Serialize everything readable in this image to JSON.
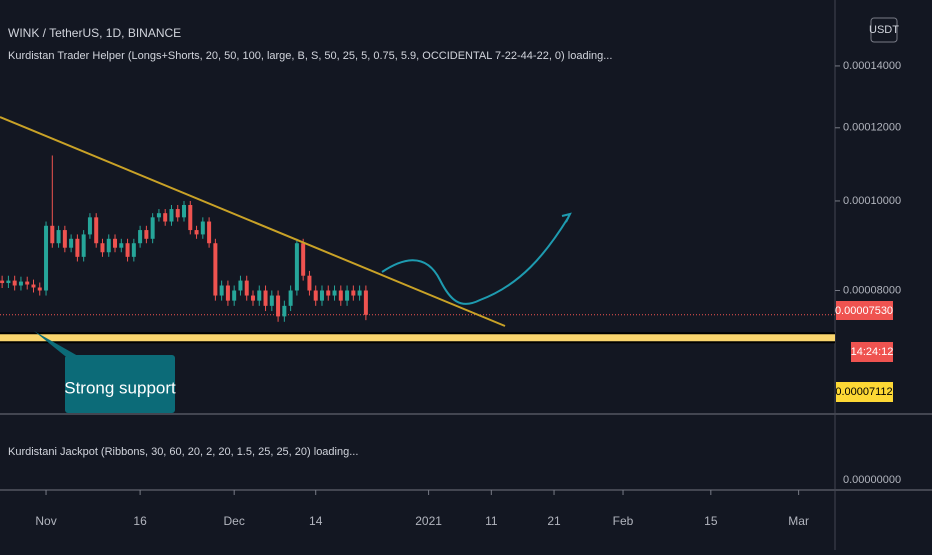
{
  "header": {
    "symbol": "WINK / TetherUS, 1D, BINANCE",
    "indicator": "Kurdistan Trader Helper (Longs+Shorts, 20, 50, 100, large, B, S, 50, 25, 5, 0.75, 5.9, OCCIDENTAL 7-22-44-22, 0) loading...",
    "currency_button": "USDT"
  },
  "annotation": "Strong support",
  "lower_pane": {
    "indicator": "Kurdistani Jackpot (Ribbons, 30, 60, 20, 2, 20, 1.5, 25, 25, 20) loading...",
    "axis_label": "0.00000000"
  },
  "chart_data": {
    "type": "candlestick",
    "log_scale": true,
    "grid": false,
    "up_color": "#26a69a",
    "down_color": "#ef5350",
    "x": [
      -7,
      -6,
      -5,
      -4,
      -3,
      -2,
      -1,
      0,
      1,
      2,
      3,
      4,
      5,
      6,
      7,
      8,
      9,
      10,
      11,
      12,
      13,
      14,
      15,
      16,
      17,
      18,
      19,
      20,
      21,
      22,
      23,
      24,
      25,
      26,
      27,
      28,
      29,
      30,
      31,
      32,
      33,
      34,
      35,
      36,
      37,
      38,
      39,
      40,
      41,
      42,
      43,
      44,
      45,
      46,
      47,
      48,
      49,
      50,
      51
    ],
    "open": [
      8.2e-05,
      8.15e-05,
      8.2e-05,
      8.1e-05,
      8.18e-05,
      8.12e-05,
      8.06e-05,
      8e-05,
      9.4e-05,
      9e-05,
      9.3e-05,
      8.9e-05,
      9.1e-05,
      8.7e-05,
      9.2e-05,
      9.6e-05,
      9e-05,
      8.8e-05,
      9.1e-05,
      8.9e-05,
      9e-05,
      8.7e-05,
      9e-05,
      9.3e-05,
      9.1e-05,
      9.6e-05,
      9.7e-05,
      9.5e-05,
      9.8e-05,
      9.6e-05,
      9.9e-05,
      9.3e-05,
      9.2e-05,
      9.5e-05,
      9e-05,
      7.9e-05,
      8.1e-05,
      7.8e-05,
      8e-05,
      8.2e-05,
      7.9e-05,
      7.8e-05,
      8e-05,
      7.7e-05,
      7.9e-05,
      7.5e-05,
      7.7e-05,
      8e-05,
      9e-05,
      8.3e-05,
      8e-05,
      7.8e-05,
      8e-05,
      7.9e-05,
      8e-05,
      7.8e-05,
      8e-05,
      7.9e-05,
      8e-05
    ],
    "high": [
      8.3e-05,
      8.3e-05,
      8.3e-05,
      8.28e-05,
      8.28e-05,
      8.22e-05,
      8.16e-05,
      9.5e-05,
      0.000112,
      9.4e-05,
      9.4e-05,
      9.2e-05,
      9.2e-05,
      9.3e-05,
      9.7e-05,
      9.7e-05,
      9.1e-05,
      9.2e-05,
      9.2e-05,
      9.1e-05,
      9.1e-05,
      9.1e-05,
      9.4e-05,
      9.4e-05,
      9.7e-05,
      9.8e-05,
      9.8e-05,
      9.9e-05,
      9.9e-05,
      0.0001,
      0.0001,
      9.4e-05,
      9.6e-05,
      9.6e-05,
      9.1e-05,
      8.2e-05,
      8.2e-05,
      8.1e-05,
      8.3e-05,
      8.3e-05,
      8e-05,
      8.1e-05,
      8.1e-05,
      8e-05,
      8e-05,
      7.8e-05,
      8.1e-05,
      9.1e-05,
      9.1e-05,
      8.4e-05,
      8.1e-05,
      8.1e-05,
      8.1e-05,
      8.1e-05,
      8.1e-05,
      8.1e-05,
      8.1e-05,
      8.1e-05,
      8.1e-05
    ],
    "low": [
      8.05e-05,
      8.05e-05,
      8e-05,
      8e-05,
      8.02e-05,
      7.96e-05,
      7.9e-05,
      7.9e-05,
      8.9e-05,
      8.9e-05,
      8.8e-05,
      8.8e-05,
      8.6e-05,
      8.6e-05,
      9.1e-05,
      8.9e-05,
      8.7e-05,
      8.7e-05,
      8.8e-05,
      8.8e-05,
      8.6e-05,
      8.6e-05,
      8.9e-05,
      9e-05,
      9e-05,
      9.5e-05,
      9.4e-05,
      9.4e-05,
      9.5e-05,
      9.5e-05,
      9.2e-05,
      9.1e-05,
      9.1e-05,
      8.9e-05,
      7.8e-05,
      7.8e-05,
      7.7e-05,
      7.7e-05,
      7.9e-05,
      7.8e-05,
      7.7e-05,
      7.7e-05,
      7.6e-05,
      7.6e-05,
      7.4e-05,
      7.4e-05,
      7.6e-05,
      7.9e-05,
      8.2e-05,
      7.9e-05,
      7.7e-05,
      7.7e-05,
      7.8e-05,
      7.8e-05,
      7.7e-05,
      7.7e-05,
      7.8e-05,
      7.8e-05,
      7.43e-05
    ],
    "close": [
      8.15e-05,
      8.2e-05,
      8.1e-05,
      8.18e-05,
      8.12e-05,
      8.06e-05,
      8e-05,
      9.4e-05,
      9e-05,
      9.3e-05,
      8.9e-05,
      9.1e-05,
      8.7e-05,
      9.2e-05,
      9.6e-05,
      9e-05,
      8.8e-05,
      9.1e-05,
      8.9e-05,
      9e-05,
      8.7e-05,
      9e-05,
      9.3e-05,
      9.1e-05,
      9.6e-05,
      9.7e-05,
      9.5e-05,
      9.8e-05,
      9.6e-05,
      9.9e-05,
      9.3e-05,
      9.2e-05,
      9.5e-05,
      9e-05,
      7.9e-05,
      8.1e-05,
      7.8e-05,
      8e-05,
      8.2e-05,
      7.9e-05,
      7.8e-05,
      8e-05,
      7.7e-05,
      7.9e-05,
      7.5e-05,
      7.7e-05,
      8e-05,
      9e-05,
      8.3e-05,
      8e-05,
      7.8e-05,
      8e-05,
      7.9e-05,
      8e-05,
      7.8e-05,
      8e-05,
      7.9e-05,
      8e-05,
      7.53e-05
    ],
    "xlim": [
      -7.34,
      125.8
    ],
    "xticks": [
      {
        "value": 0,
        "label": "Nov"
      },
      {
        "value": 15,
        "label": "16"
      },
      {
        "value": 30,
        "label": "Dec"
      },
      {
        "value": 43,
        "label": "14"
      },
      {
        "value": 61,
        "label": "2021"
      },
      {
        "value": 71,
        "label": "11"
      },
      {
        "value": 81,
        "label": "21"
      },
      {
        "value": 92,
        "label": "Feb"
      },
      {
        "value": 106,
        "label": "15"
      },
      {
        "value": 120,
        "label": "Mar"
      }
    ],
    "ylim": [
      5.91e-05,
      0.000165
    ],
    "yticks": [
      {
        "value": 0.00014,
        "label": "0.00014000"
      },
      {
        "value": 0.00012,
        "label": "0.00012000"
      },
      {
        "value": 0.0001,
        "label": "0.00010000"
      },
      {
        "value": 8e-05,
        "label": "0.00008000"
      }
    ],
    "last_price": {
      "value": 7.53e-05,
      "label": "0.00007530",
      "countdown": "14:24:12"
    },
    "support_level": {
      "value": 7.112e-05,
      "label": "0.00007112"
    }
  }
}
